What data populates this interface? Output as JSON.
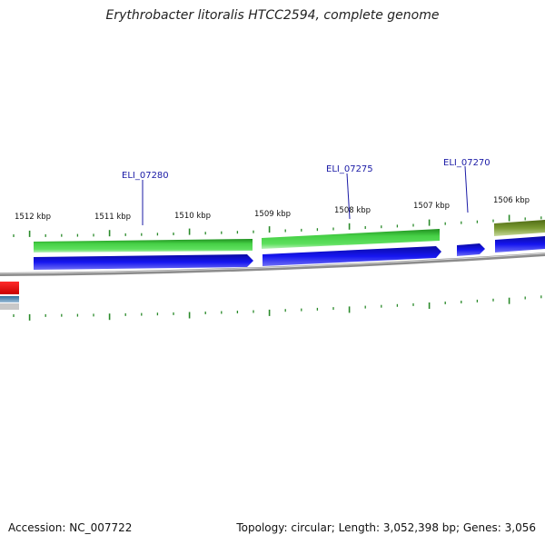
{
  "title": "Erythrobacter litoralis HTCC2594, complete genome",
  "footer": {
    "accession": "Accession: NC_007722",
    "summary": "Topology: circular; Length: 3,052,398 bp; Genes: 3,056"
  },
  "scale_labels": [
    "1512 kbp",
    "1511 kbp",
    "1510 kbp",
    "1509 kbp",
    "1508 kbp",
    "1507 kbp",
    "1506 kbp"
  ],
  "genes": [
    {
      "name": "ELI_07280"
    },
    {
      "name": "ELI_07275"
    },
    {
      "name": "ELI_07270"
    }
  ],
  "colors": {
    "cds_green": "#3bbf3b",
    "cds_blue": "#1010e6",
    "cds_olive": "#6f8f2a",
    "backbone": "#8c8c8c",
    "tick": "#2a8a2a",
    "gene_label": "#1a1aa6",
    "red_feature": "#e01010",
    "steel_feature": "#4a7fa8"
  }
}
